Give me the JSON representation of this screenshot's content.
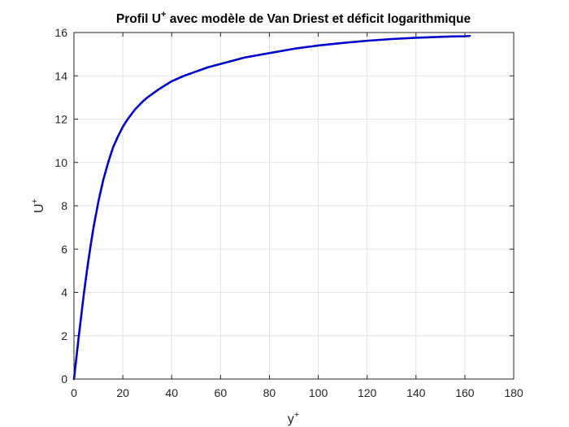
{
  "chart_data": {
    "type": "line",
    "title": {
      "main": "Profil U",
      "sup": "+",
      "rest": " avec modèle de Van Driest et déficit logarithmique"
    },
    "xlabel": {
      "main": "y",
      "sup": "+"
    },
    "ylabel": {
      "main": "U",
      "sup": "+"
    },
    "xlim": [
      0,
      180
    ],
    "ylim": [
      0,
      16
    ],
    "xticks": [
      0,
      20,
      40,
      60,
      80,
      100,
      120,
      140,
      160,
      180
    ],
    "yticks": [
      0,
      2,
      4,
      6,
      8,
      10,
      12,
      14,
      16
    ],
    "grid": true,
    "series": [
      {
        "color": "#0000cc",
        "x": [
          0,
          1,
          2,
          3,
          4,
          5,
          6,
          7,
          8,
          10,
          12,
          14,
          16,
          18,
          20,
          22,
          25,
          28,
          30,
          35,
          40,
          45,
          50,
          55,
          60,
          70,
          80,
          90,
          100,
          110,
          120,
          130,
          140,
          150,
          155,
          160,
          162
        ],
        "y": [
          0,
          1.0,
          2.0,
          2.95,
          3.9,
          4.75,
          5.55,
          6.3,
          7.0,
          8.2,
          9.2,
          10.0,
          10.7,
          11.2,
          11.65,
          12.0,
          12.45,
          12.8,
          13.0,
          13.4,
          13.75,
          14.0,
          14.2,
          14.4,
          14.55,
          14.85,
          15.05,
          15.25,
          15.4,
          15.52,
          15.62,
          15.7,
          15.76,
          15.8,
          15.82,
          15.83,
          15.84
        ]
      }
    ]
  }
}
